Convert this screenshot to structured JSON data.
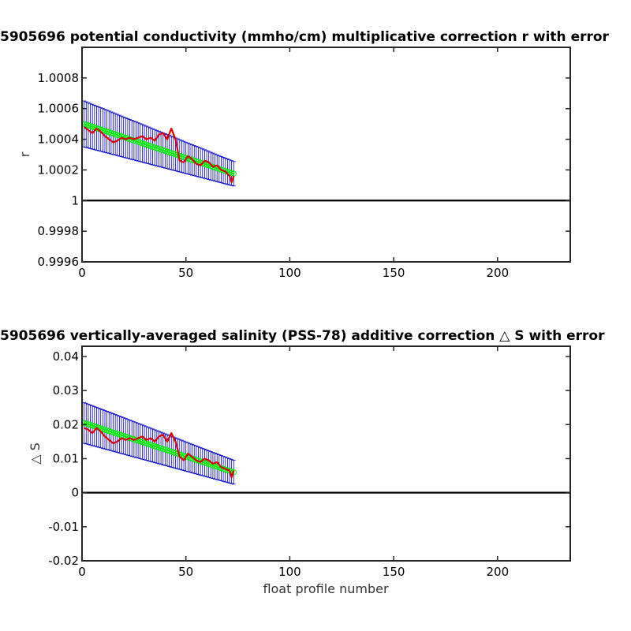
{
  "chart_data": [
    {
      "type": "line",
      "title": "5905696 potential conductivity (mmho/cm) multiplicative correction r with error",
      "xlabel": "",
      "ylabel": "r",
      "xlim": [
        0,
        235
      ],
      "ylim": [
        0.9996,
        1.001
      ],
      "xticks": [
        0,
        50,
        100,
        150,
        200
      ],
      "xtick_labels": [
        "0",
        "50",
        "100",
        "150",
        "200"
      ],
      "yticks": [
        0.9996,
        0.9998,
        1.0,
        1.0002,
        1.0004,
        1.0006,
        1.0008
      ],
      "ytick_labels": [
        "0.9996",
        "0.9998",
        "1",
        "1.0002",
        "1.0004",
        "1.0006",
        "1.0008"
      ],
      "reference_line": {
        "y": 1.0,
        "color": "#000000"
      },
      "series": [
        {
          "role": "fit_with_error",
          "color": "#00ee00",
          "error_color": "#0000cc",
          "x_start": 1,
          "x_end": 73,
          "y_start": 1.0005,
          "y_end": 1.000175,
          "err_start": 0.00015,
          "err_end": 8e-05
        },
        {
          "role": "raw",
          "color": "#dd0000",
          "x": [
            1,
            3,
            5,
            7,
            9,
            11,
            13,
            15,
            17,
            19,
            21,
            23,
            25,
            27,
            29,
            31,
            33,
            35,
            37,
            39,
            41,
            43,
            45,
            47,
            49,
            51,
            53,
            55,
            57,
            59,
            61,
            63,
            65,
            67,
            69,
            71,
            72,
            73
          ],
          "y": [
            1.00048,
            1.00046,
            1.00044,
            1.00047,
            1.00045,
            1.00042,
            1.0004,
            1.00038,
            1.00039,
            1.00041,
            1.0004,
            1.00041,
            1.0004,
            1.00041,
            1.00042,
            1.0004,
            1.00041,
            1.00039,
            1.00043,
            1.00044,
            1.0004,
            1.00047,
            1.0004,
            1.00026,
            1.00025,
            1.00029,
            1.00027,
            1.00024,
            1.00023,
            1.00026,
            1.00025,
            1.00022,
            1.00023,
            1.0002,
            1.00019,
            1.00016,
            1.00012,
            1.00016
          ]
        }
      ]
    },
    {
      "type": "line",
      "title": "5905696 vertically-averaged salinity (PSS-78) additive correction △ S with error",
      "xlabel": "float profile number",
      "ylabel": "△ S",
      "xlim": [
        0,
        235
      ],
      "ylim": [
        -0.02,
        0.043
      ],
      "xticks": [
        0,
        50,
        100,
        150,
        200
      ],
      "xtick_labels": [
        "0",
        "50",
        "100",
        "150",
        "200"
      ],
      "yticks": [
        -0.02,
        -0.01,
        0,
        0.01,
        0.02,
        0.03,
        0.04
      ],
      "ytick_labels": [
        "-0.02",
        "-0.01",
        "0",
        "0.01",
        "0.02",
        "0.03",
        "0.04"
      ],
      "reference_line": {
        "y": 0.0,
        "color": "#000000"
      },
      "series": [
        {
          "role": "fit_with_error",
          "color": "#00ee00",
          "error_color": "#0000cc",
          "x_start": 1,
          "x_end": 73,
          "y_start": 0.0205,
          "y_end": 0.006,
          "err_start": 0.006,
          "err_end": 0.0035
        },
        {
          "role": "raw",
          "color": "#dd0000",
          "x": [
            1,
            3,
            5,
            7,
            9,
            11,
            13,
            15,
            17,
            19,
            21,
            23,
            25,
            27,
            29,
            31,
            33,
            35,
            37,
            39,
            41,
            43,
            45,
            47,
            49,
            51,
            53,
            55,
            57,
            59,
            61,
            63,
            65,
            67,
            69,
            71,
            72,
            73
          ],
          "y": [
            0.019,
            0.0185,
            0.0175,
            0.019,
            0.018,
            0.0165,
            0.0155,
            0.0145,
            0.015,
            0.016,
            0.0155,
            0.016,
            0.0155,
            0.016,
            0.0165,
            0.0155,
            0.016,
            0.015,
            0.0165,
            0.017,
            0.015,
            0.0175,
            0.015,
            0.0105,
            0.0095,
            0.0115,
            0.0105,
            0.0095,
            0.009,
            0.01,
            0.0095,
            0.0085,
            0.009,
            0.0075,
            0.007,
            0.0065,
            0.0045,
            0.0065
          ]
        }
      ]
    }
  ]
}
